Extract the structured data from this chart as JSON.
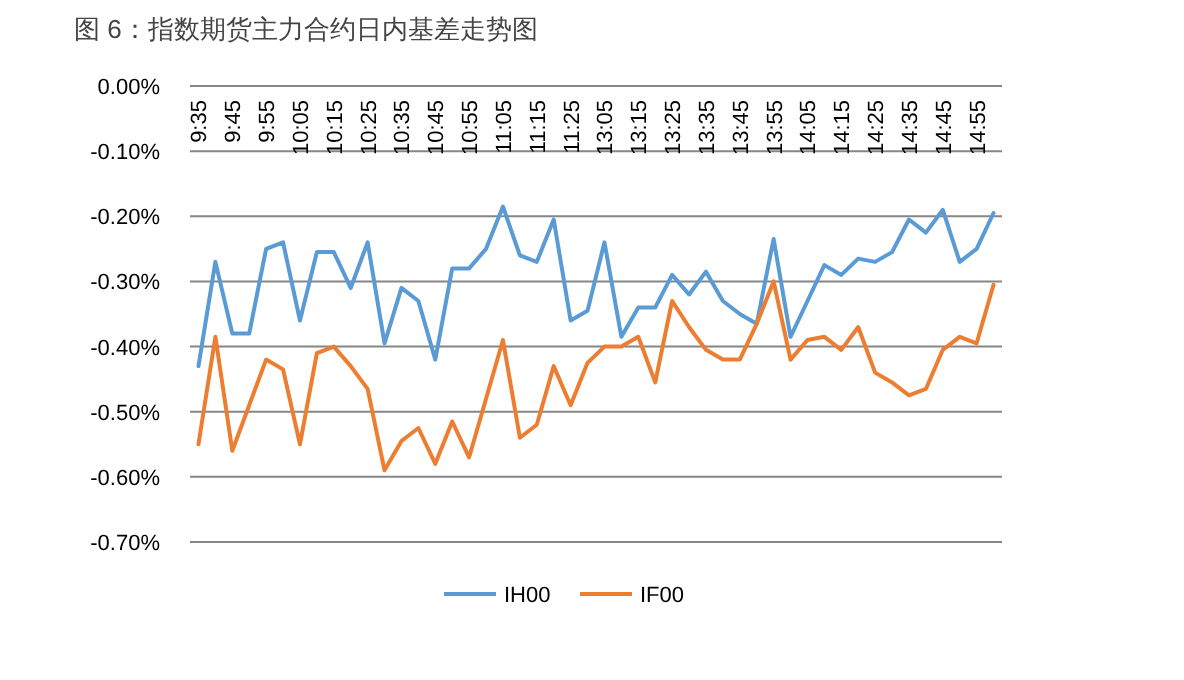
{
  "chart_data": {
    "type": "line",
    "title": "图 6：指数期货主力合约日内基差走势图",
    "categories": [
      "9:35",
      null,
      "9:45",
      null,
      "9:55",
      null,
      "10:05",
      null,
      "10:15",
      null,
      "10:25",
      null,
      "10:35",
      null,
      "10:45",
      null,
      "10:55",
      null,
      "11:05",
      null,
      "11:15",
      null,
      "11:25",
      null,
      "13:05",
      null,
      "13:15",
      null,
      "13:25",
      null,
      "13:35",
      null,
      "13:45",
      null,
      "13:55",
      null,
      "14:05",
      null,
      "14:15",
      null,
      "14:25",
      null,
      "14:35",
      null,
      "14:45",
      null,
      "14:55",
      null
    ],
    "series": [
      {
        "name": "IH00",
        "color": "#5b9bd5",
        "values": [
          -0.43,
          -0.27,
          -0.38,
          -0.38,
          -0.25,
          -0.24,
          -0.36,
          -0.255,
          -0.255,
          -0.31,
          -0.24,
          -0.395,
          -0.31,
          -0.33,
          -0.42,
          -0.28,
          -0.28,
          -0.25,
          -0.185,
          -0.26,
          -0.27,
          -0.205,
          -0.36,
          -0.345,
          -0.24,
          -0.385,
          -0.34,
          -0.34,
          -0.29,
          -0.32,
          -0.285,
          -0.33,
          -0.35,
          -0.365,
          -0.235,
          -0.385,
          -0.33,
          -0.275,
          -0.29,
          -0.265,
          -0.27,
          -0.255,
          -0.205,
          -0.225,
          -0.19,
          -0.27,
          -0.25,
          -0.195
        ]
      },
      {
        "name": "IF00",
        "color": "#ed7d31",
        "values": [
          -0.55,
          -0.385,
          -0.56,
          -0.49,
          -0.42,
          -0.435,
          -0.55,
          -0.41,
          -0.4,
          -0.43,
          -0.465,
          -0.59,
          -0.545,
          -0.525,
          -0.58,
          -0.515,
          -0.57,
          -0.48,
          -0.39,
          -0.54,
          -0.52,
          -0.43,
          -0.49,
          -0.425,
          -0.4,
          -0.4,
          -0.385,
          -0.455,
          -0.33,
          -0.37,
          -0.405,
          -0.42,
          -0.42,
          -0.365,
          -0.3,
          -0.42,
          -0.39,
          -0.385,
          -0.405,
          -0.37,
          -0.44,
          -0.455,
          -0.475,
          -0.465,
          -0.405,
          -0.385,
          -0.395,
          -0.305
        ]
      }
    ],
    "ylim": [
      -0.7,
      0
    ],
    "yticks": [
      {
        "value": 0,
        "label": "0.00%"
      },
      {
        "value": -0.1,
        "label": "-0.10%"
      },
      {
        "value": -0.2,
        "label": "-0.20%"
      },
      {
        "value": -0.3,
        "label": "-0.30%"
      },
      {
        "value": -0.4,
        "label": "-0.40%"
      },
      {
        "value": -0.5,
        "label": "-0.50%"
      },
      {
        "value": -0.6,
        "label": "-0.60%"
      },
      {
        "value": -0.7,
        "label": "-0.70%"
      }
    ],
    "grid": "y",
    "legend": "bottom",
    "marker": "none",
    "line_style": "solid"
  }
}
